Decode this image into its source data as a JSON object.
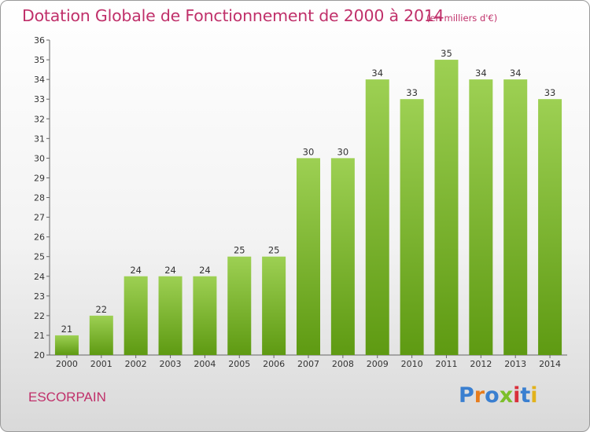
{
  "header": {
    "title": "Dotation Globale de Fonctionnement de 2000 à 2014",
    "unit": "(en milliers d'€)"
  },
  "footer": {
    "commune": "ESCORPAIN",
    "logo": "Proxiti"
  },
  "colors": {
    "title": "#c0306a",
    "bar_top": "#9dd053",
    "bar_bottom": "#5e9a12",
    "logo_letters": [
      "#3a7fd0",
      "#e77c1c",
      "#3a7fd0",
      "#7cbf2a",
      "#d9303c",
      "#3a7fd0",
      "#e2b21b"
    ]
  },
  "chart_data": {
    "type": "bar",
    "title": "Dotation Globale de Fonctionnement de 2000 à 2014",
    "subtitle": "(en milliers d'€)",
    "xlabel": "",
    "ylabel": "",
    "categories": [
      "2000",
      "2001",
      "2002",
      "2003",
      "2004",
      "2005",
      "2006",
      "2007",
      "2008",
      "2009",
      "2010",
      "2011",
      "2012",
      "2013",
      "2014"
    ],
    "values": [
      21,
      22,
      24,
      24,
      24,
      25,
      25,
      30,
      30,
      34,
      33,
      35,
      34,
      34,
      33
    ],
    "ylim": [
      20,
      36
    ],
    "yticks": [
      20,
      21,
      22,
      23,
      24,
      25,
      26,
      27,
      28,
      29,
      30,
      31,
      32,
      33,
      34,
      35,
      36
    ],
    "grid": false,
    "data_labels": true
  }
}
